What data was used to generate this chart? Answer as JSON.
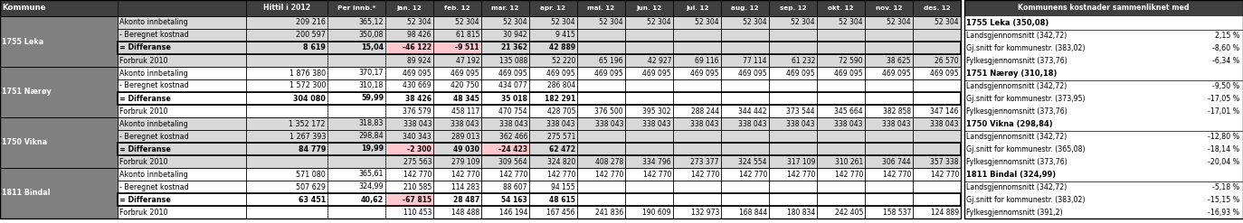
{
  "municipalities": [
    {
      "name": "1755 Leka",
      "bg": "#d8d8d8",
      "rows": [
        {
          "label": "Akonto innbetaling",
          "hitti": "209 216",
          "per": "365,12",
          "jan": "52 304",
          "feb": "52 304",
          "mar": "52 304",
          "apr": "52 304",
          "mai": "52 304",
          "jun": "52 304",
          "jul": "52 304",
          "aug": "52 304",
          "sep": "52 304",
          "okt": "52 304",
          "nov": "52 304",
          "des": "52 304",
          "type": "normal"
        },
        {
          "label": "- Beregnet kostnad",
          "hitti": "200 597",
          "per": "350,08",
          "jan": "98 426",
          "feb": "61 815",
          "mar": "30 942",
          "apr": "9 415",
          "mai": "",
          "jun": "",
          "jul": "",
          "aug": "",
          "sep": "",
          "okt": "",
          "nov": "",
          "des": "",
          "type": "normal"
        },
        {
          "label": "= Differanse",
          "hitti": "8 619",
          "per": "15,04",
          "jan": "-46 122",
          "feb": "-9 511",
          "mar": "21 362",
          "apr": "42 889",
          "mai": "",
          "jun": "",
          "jul": "",
          "aug": "",
          "sep": "",
          "okt": "",
          "nov": "",
          "des": "",
          "type": "diff",
          "neg_cols": [
            "jan",
            "feb"
          ]
        },
        {
          "label": "Forbruk 2010",
          "hitti": "",
          "per": "",
          "jan": "89 924",
          "feb": "47 192",
          "mar": "135 088",
          "apr": "52 220",
          "mai": "65 196",
          "jun": "42 927",
          "jul": "69 116",
          "aug": "77 114",
          "sep": "61 232",
          "okt": "72 590",
          "nov": "38 625",
          "des": "26 570",
          "type": "forbruk"
        }
      ]
    },
    {
      "name": "1751 Nærøy",
      "bg": "#ffffff",
      "rows": [
        {
          "label": "Akonto innbetaling",
          "hitti": "1 876 380",
          "per": "370,17",
          "jan": "469 095",
          "feb": "469 095",
          "mar": "469 095",
          "apr": "469 095",
          "mai": "469 095",
          "jun": "469 095",
          "jul": "469 095",
          "aug": "469 095",
          "sep": "469 095",
          "okt": "469 095",
          "nov": "469 095",
          "des": "469 095",
          "type": "normal"
        },
        {
          "label": "- Beregnet kostnad",
          "hitti": "1 572 300",
          "per": "310,18",
          "jan": "430 669",
          "feb": "420 750",
          "mar": "434 077",
          "apr": "286 804",
          "mai": "",
          "jun": "",
          "jul": "",
          "aug": "",
          "sep": "",
          "okt": "",
          "nov": "",
          "des": "",
          "type": "normal"
        },
        {
          "label": "= Differanse",
          "hitti": "304 080",
          "per": "59,99",
          "jan": "38 426",
          "feb": "48 345",
          "mar": "35 018",
          "apr": "182 291",
          "mai": "",
          "jun": "",
          "jul": "",
          "aug": "",
          "sep": "",
          "okt": "",
          "nov": "",
          "des": "",
          "type": "diff",
          "neg_cols": []
        },
        {
          "label": "Forbruk 2010",
          "hitti": "",
          "per": "",
          "jan": "376 579",
          "feb": "458 117",
          "mar": "470 754",
          "apr": "428 705",
          "mai": "376 500",
          "jun": "395 302",
          "jul": "288 244",
          "aug": "344 442",
          "sep": "373 544",
          "okt": "345 664",
          "nov": "382 858",
          "des": "347 146",
          "type": "forbruk"
        }
      ]
    },
    {
      "name": "1750 Vikna",
      "bg": "#d8d8d8",
      "rows": [
        {
          "label": "Akonto innbetaling",
          "hitti": "1 352 172",
          "per": "318,83",
          "jan": "338 043",
          "feb": "338 043",
          "mar": "338 043",
          "apr": "338 043",
          "mai": "338 043",
          "jun": "338 043",
          "jul": "338 043",
          "aug": "338 043",
          "sep": "338 043",
          "okt": "338 043",
          "nov": "338 043",
          "des": "338 043",
          "type": "normal"
        },
        {
          "label": "- Beregnet kostnad",
          "hitti": "1 267 393",
          "per": "298,84",
          "jan": "340 343",
          "feb": "289 013",
          "mar": "362 466",
          "apr": "275 571",
          "mai": "",
          "jun": "",
          "jul": "",
          "aug": "",
          "sep": "",
          "okt": "",
          "nov": "",
          "des": "",
          "type": "normal"
        },
        {
          "label": "= Differanse",
          "hitti": "84 779",
          "per": "19,99",
          "jan": "-2 300",
          "feb": "49 030",
          "mar": "-24 423",
          "apr": "62 472",
          "mai": "",
          "jun": "",
          "jul": "",
          "aug": "",
          "sep": "",
          "okt": "",
          "nov": "",
          "des": "",
          "type": "diff",
          "neg_cols": [
            "jan",
            "mar"
          ]
        },
        {
          "label": "Forbruk 2010",
          "hitti": "",
          "per": "",
          "jan": "275 563",
          "feb": "279 109",
          "mar": "309 564",
          "apr": "324 820",
          "mai": "408 278",
          "jun": "334 796",
          "jul": "273 377",
          "aug": "324 554",
          "sep": "317 109",
          "okt": "310 261",
          "nov": "306 744",
          "des": "357 338",
          "type": "forbruk"
        }
      ]
    },
    {
      "name": "1811 Bindal",
      "bg": "#ffffff",
      "rows": [
        {
          "label": "Akonto innbetaling",
          "hitti": "571 080",
          "per": "365,61",
          "jan": "142 770",
          "feb": "142 770",
          "mar": "142 770",
          "apr": "142 770",
          "mai": "142 770",
          "jun": "142 770",
          "jul": "142 770",
          "aug": "142 770",
          "sep": "142 770",
          "okt": "142 770",
          "nov": "142 770",
          "des": "142 770",
          "type": "normal"
        },
        {
          "label": "- Beregnet kostnad",
          "hitti": "507 629",
          "per": "324,99",
          "jan": "210 585",
          "feb": "114 283",
          "mar": "88 607",
          "apr": "94 155",
          "mai": "",
          "jun": "",
          "jul": "",
          "aug": "",
          "sep": "",
          "okt": "",
          "nov": "",
          "des": "",
          "type": "normal"
        },
        {
          "label": "= Differanse",
          "hitti": "63 451",
          "per": "40,62",
          "jan": "-67 815",
          "feb": "28 487",
          "mar": "54 163",
          "apr": "48 615",
          "mai": "",
          "jun": "",
          "jul": "",
          "aug": "",
          "sep": "",
          "okt": "",
          "nov": "",
          "des": "",
          "type": "diff",
          "neg_cols": [
            "jan"
          ]
        },
        {
          "label": "Forbruk 2010",
          "hitti": "",
          "per": "",
          "jan": "110 453",
          "feb": "148 488",
          "mar": "146 194",
          "apr": "167 456",
          "mai": "241 836",
          "jun": "190 609",
          "jul": "132 973",
          "aug": "168 844",
          "sep": "180 834",
          "okt": "242 405",
          "nov": "158 537",
          "des": "124 889",
          "type": "forbruk"
        }
      ]
    }
  ],
  "right_panel_title": "Kommunens kostnader sammenliknet med",
  "right_sections": [
    {
      "header": "1755 Leka (350,08)",
      "items": [
        {
          "label": "Landsgjennomsnitt (342,72)",
          "value": "2,15 %"
        },
        {
          "label": "Gj.snitt for kommunestr. (383,02)",
          "value": "-8,60 %"
        },
        {
          "label": "Fylkesgjennomsnitt (373,76)",
          "value": "-6,34 %"
        }
      ]
    },
    {
      "header": "1751 Nærøy (310,18)",
      "items": [
        {
          "label": "Landsgjennomsnitt (342,72)",
          "value": "-9,50 %"
        },
        {
          "label": "Gj.snitt for kommunestr. (373,95)",
          "value": "-17,05 %"
        },
        {
          "label": "Fylkesgjennomsnitt (373,76)",
          "value": "-17,01 %"
        }
      ]
    },
    {
      "header": "1750 Vikna (298,84)",
      "items": [
        {
          "label": "Landsgjennomsnitt (342,72)",
          "value": "-12,80 %"
        },
        {
          "label": "Gj.snitt for kommunestr. (365,08)",
          "value": "-18,14 %"
        },
        {
          "label": "Fylkesgjennomsnitt (373,76)",
          "value": "-20,04 %"
        }
      ]
    },
    {
      "header": "1811 Bindal (324,99)",
      "items": [
        {
          "label": "Landsgjennomsnitt (342,72)",
          "value": "-5,18 %"
        },
        {
          "label": "Gj.snitt for kommunestr. (383,02)",
          "value": "-15,15 %"
        },
        {
          "label": "Fylkesgjennomsnitt (391,2)",
          "value": "-16,93 %"
        }
      ]
    }
  ],
  "col_keys": [
    "jan",
    "feb",
    "mar",
    "apr",
    "mai",
    "jun",
    "jul",
    "aug",
    "sep",
    "okt",
    "nov",
    "des"
  ],
  "month_labels": [
    "jan. 12",
    "feb. 12",
    "mar. 12",
    "apr. 12",
    "mai. 12",
    "jun. 12",
    "jul. 12",
    "aug. 12",
    "sep. 12",
    "okt. 12",
    "nov. 12",
    "des. 12"
  ],
  "header_bg": "#3f3f3f",
  "header_fg": "#ffffff",
  "muni_bg": "#808080",
  "muni_fg": "#ffffff",
  "neg_cell_bg": "#ffc7ce",
  "diff_border_color": "#000000",
  "gray_row_bg": "#d8d8d8",
  "white_row_bg": "#ffffff",
  "right_panel_bg": "#ffffff"
}
